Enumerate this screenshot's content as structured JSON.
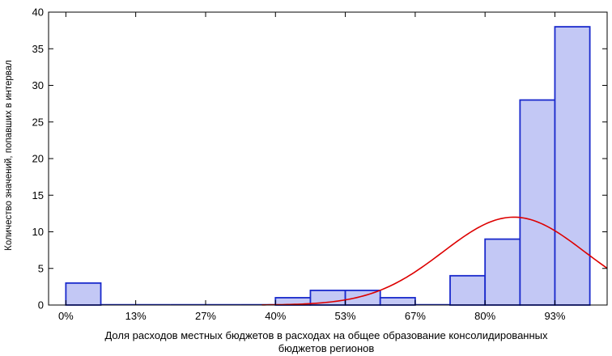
{
  "chart_data": {
    "type": "bar",
    "subtype": "histogram",
    "bins": [
      {
        "x0": 0.0,
        "x1": 6.67,
        "count": 3
      },
      {
        "x0": 6.67,
        "x1": 13.33,
        "count": 0
      },
      {
        "x0": 13.33,
        "x1": 20.0,
        "count": 0
      },
      {
        "x0": 20.0,
        "x1": 26.67,
        "count": 0
      },
      {
        "x0": 26.67,
        "x1": 33.33,
        "count": 0
      },
      {
        "x0": 33.33,
        "x1": 40.0,
        "count": 0
      },
      {
        "x0": 40.0,
        "x1": 46.67,
        "count": 1
      },
      {
        "x0": 46.67,
        "x1": 53.33,
        "count": 2
      },
      {
        "x0": 53.33,
        "x1": 60.0,
        "count": 2
      },
      {
        "x0": 60.0,
        "x1": 66.67,
        "count": 1
      },
      {
        "x0": 66.67,
        "x1": 73.33,
        "count": 0
      },
      {
        "x0": 73.33,
        "x1": 80.0,
        "count": 4
      },
      {
        "x0": 80.0,
        "x1": 86.67,
        "count": 9
      },
      {
        "x0": 86.67,
        "x1": 93.33,
        "count": 28
      },
      {
        "x0": 93.33,
        "x1": 100.0,
        "count": 38
      }
    ],
    "xticks": [
      0,
      13.33,
      26.67,
      40,
      53.33,
      66.67,
      80,
      93.33
    ],
    "xtick_labels": [
      "0%",
      "13%",
      "27%",
      "40%",
      "53%",
      "67%",
      "80%",
      "93%"
    ],
    "xlim": [
      -3.3,
      103.3
    ],
    "yticks": [
      0,
      5,
      10,
      15,
      20,
      25,
      30,
      35,
      40
    ],
    "ylim": [
      0,
      40
    ],
    "normal_curve": {
      "mean": 85.5,
      "sd": 13.5,
      "peak": 12.0,
      "color": "#dd0000"
    },
    "xlabel_lines": [
      "Доля расходов местных бюджетов в расходах на общее образование консолидированных",
      "бюджетов регионов"
    ],
    "ylabel": "Количество значений, попавших в интервал",
    "colors": {
      "bar_fill": "#c3c8f5",
      "bar_stroke": "#1a2acc",
      "axis": "#000000"
    },
    "grid": false,
    "legend": "none"
  }
}
